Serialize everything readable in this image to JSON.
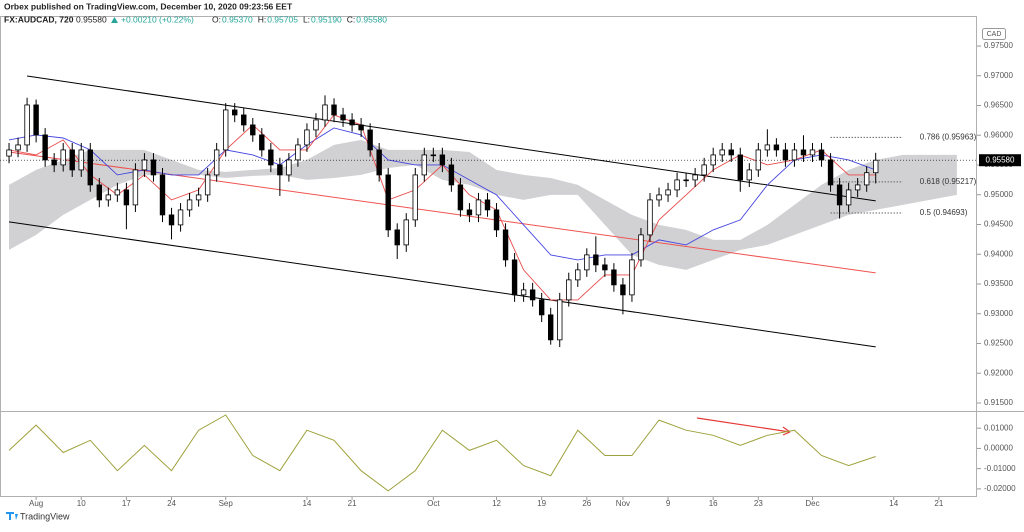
{
  "header": {
    "publisher": "Orbex published on TradingView.com, December 10, 2020 09:23:56 EET",
    "symbol": "FX:AUDCAD, 720",
    "last": "0.95580",
    "change": "+0.00210 (+0.22%)",
    "quote": [
      {
        "label": "O:",
        "value": "0.95370"
      },
      {
        "label": "H:",
        "value": "0.95705"
      },
      {
        "label": "L:",
        "value": "0.95190"
      },
      {
        "label": "C:",
        "value": "0.95580"
      }
    ],
    "currency": "CAD"
  },
  "footer": {
    "brand": "TradingView"
  },
  "chart_data": {
    "type": "candlestick",
    "xlim": [
      -4,
      104
    ],
    "ylim": [
      0.91382,
      0.98004
    ],
    "xticks": [
      {
        "value": 0,
        "label": "Aug"
      },
      {
        "value": 5,
        "label": "10"
      },
      {
        "value": 10,
        "label": "17"
      },
      {
        "value": 15,
        "label": "24"
      },
      {
        "value": 21,
        "label": "Sep"
      },
      {
        "value": 30,
        "label": "14"
      },
      {
        "value": 35,
        "label": "21"
      },
      {
        "value": 44,
        "label": "Oct"
      },
      {
        "value": 51,
        "label": "12"
      },
      {
        "value": 56,
        "label": "19"
      },
      {
        "value": 61,
        "label": "26"
      },
      {
        "value": 65,
        "label": "Nov"
      },
      {
        "value": 70,
        "label": "9"
      },
      {
        "value": 75,
        "label": "16"
      },
      {
        "value": 80,
        "label": "23"
      },
      {
        "value": 86,
        "label": "Dec"
      },
      {
        "value": 95,
        "label": "14"
      },
      {
        "value": 100,
        "label": "21"
      }
    ],
    "yticks": [
      {
        "value": 0.975,
        "label": "0.97500"
      },
      {
        "value": 0.97,
        "label": "0.97000"
      },
      {
        "value": 0.965,
        "label": "0.96500"
      },
      {
        "value": 0.96,
        "label": "0.96000"
      },
      {
        "value": 0.955,
        "label": "0.95500"
      },
      {
        "value": 0.95,
        "label": "0.95000"
      },
      {
        "value": 0.945,
        "label": "0.94500"
      },
      {
        "value": 0.94,
        "label": "0.94000"
      },
      {
        "value": 0.935,
        "label": "0.93500"
      },
      {
        "value": 0.93,
        "label": "0.93000"
      },
      {
        "value": 0.925,
        "label": "0.92500"
      },
      {
        "value": 0.92,
        "label": "0.92000"
      },
      {
        "value": 0.915,
        "label": "0.91500"
      }
    ],
    "last_value": 0.9558,
    "up_color": "#ffffff",
    "down_color": "#000000",
    "x": [
      -3,
      -2,
      -1,
      0,
      1,
      2,
      3,
      4,
      5,
      6,
      7,
      8,
      9,
      10,
      11,
      12,
      13,
      14,
      15,
      16,
      17,
      18,
      19,
      20,
      21,
      22,
      23,
      24,
      25,
      26,
      27,
      28,
      29,
      30,
      31,
      32,
      33,
      34,
      35,
      36,
      37,
      38,
      39,
      40,
      41,
      42,
      43,
      44,
      45,
      46,
      47,
      48,
      49,
      50,
      51,
      52,
      53,
      54,
      55,
      56,
      57,
      58,
      59,
      60,
      61,
      62,
      63,
      64,
      65,
      66,
      67,
      68,
      69,
      70,
      71,
      72,
      73,
      74,
      75,
      76,
      77,
      78,
      79,
      80,
      81,
      82,
      83,
      84,
      85,
      86,
      87,
      88,
      89,
      90,
      91,
      92,
      93
    ],
    "open": [
      0.9565,
      0.95753,
      0.95837,
      0.96509,
      0.96005,
      0.95585,
      0.95501,
      0.95753,
      0.95417,
      0.95753,
      0.95165,
      0.94913,
      0.94997,
      0.95081,
      0.94829,
      0.95417,
      0.95585,
      0.95333,
      0.94661,
      0.94493,
      0.94745,
      0.94913,
      0.94997,
      0.95333,
      0.95753,
      0.96425,
      0.96341,
      0.96173,
      0.96005,
      0.95753,
      0.95501,
      0.95333,
      0.95585,
      0.95837,
      0.96089,
      0.96257,
      0.96509,
      0.96341,
      0.96257,
      0.96173,
      0.96089,
      0.95753,
      0.95333,
      0.94409,
      0.94157,
      0.94577,
      0.95333,
      0.95669,
      0.95669,
      0.95501,
      0.95165,
      0.94745,
      0.94661,
      0.94913,
      0.94745,
      0.94409,
      0.93905,
      0.93317,
      0.93401,
      0.93233,
      0.92981,
      0.92561,
      0.93233,
      0.93569,
      0.93737,
      0.93989,
      0.93821,
      0.93737,
      0.93485,
      0.93317,
      0.93905,
      0.94325,
      0.94913,
      0.94997,
      0.95081,
      0.95249,
      0.95249,
      0.95333,
      0.95501,
      0.95669,
      0.95753,
      0.95669,
      0.95249,
      0.95417,
      0.95753,
      0.95837,
      0.95753,
      0.95585,
      0.95753,
      0.95669,
      0.95753,
      0.95585,
      0.95165,
      0.94829,
      0.95081,
      0.95165,
      0.9537
    ],
    "high": [
      0.9587,
      0.9596,
      0.9663,
      0.966,
      0.9612,
      0.957,
      0.9587,
      0.9587,
      0.9587,
      0.9587,
      0.9528,
      0.9512,
      0.952,
      0.952,
      0.9553,
      0.957,
      0.957,
      0.9545,
      0.9478,
      0.9486,
      0.9503,
      0.9512,
      0.9545,
      0.9587,
      0.9654,
      0.9654,
      0.9646,
      0.9629,
      0.9612,
      0.9587,
      0.9562,
      0.957,
      0.9595,
      0.962,
      0.9637,
      0.9667,
      0.9662,
      0.9646,
      0.9637,
      0.9629,
      0.962,
      0.9587,
      0.9545,
      0.9452,
      0.9469,
      0.9545,
      0.9579,
      0.9579,
      0.9579,
      0.9562,
      0.9528,
      0.9486,
      0.9503,
      0.9503,
      0.9486,
      0.9452,
      0.9402,
      0.9352,
      0.9352,
      0.9335,
      0.931,
      0.9335,
      0.9369,
      0.9385,
      0.941,
      0.943,
      0.9394,
      0.9385,
      0.936,
      0.9402,
      0.9444,
      0.9503,
      0.9512,
      0.952,
      0.9537,
      0.9537,
      0.9545,
      0.9562,
      0.9579,
      0.9587,
      0.9587,
      0.9579,
      0.9553,
      0.9587,
      0.961,
      0.9595,
      0.9587,
      0.9587,
      0.96,
      0.9587,
      0.9587,
      0.957,
      0.9528,
      0.952,
      0.9528,
      0.9548,
      0.95705
    ],
    "low": [
      0.9553,
      0.9563,
      0.9572,
      0.9588,
      0.9547,
      0.9538,
      0.9539,
      0.953,
      0.953,
      0.9505,
      0.9479,
      0.948,
      0.9488,
      0.9442,
      0.9471,
      0.953,
      0.9522,
      0.9454,
      0.9425,
      0.9438,
      0.9463,
      0.948,
      0.9488,
      0.9522,
      0.9564,
      0.9622,
      0.9606,
      0.9589,
      0.9564,
      0.9538,
      0.9498,
      0.9522,
      0.9547,
      0.9572,
      0.9597,
      0.9614,
      0.9622,
      0.9614,
      0.9606,
      0.9597,
      0.9564,
      0.9522,
      0.9429,
      0.9392,
      0.9404,
      0.9446,
      0.9522,
      0.9555,
      0.9538,
      0.9505,
      0.9463,
      0.9454,
      0.9454,
      0.9463,
      0.9429,
      0.9379,
      0.932,
      0.932,
      0.9312,
      0.9286,
      0.9248,
      0.9244,
      0.9312,
      0.9345,
      0.9362,
      0.937,
      0.9362,
      0.9337,
      0.9299,
      0.932,
      0.9379,
      0.9421,
      0.948,
      0.9488,
      0.9496,
      0.9513,
      0.9513,
      0.9522,
      0.9538,
      0.9555,
      0.9555,
      0.9505,
      0.9513,
      0.953,
      0.9564,
      0.9564,
      0.9547,
      0.9547,
      0.9555,
      0.9555,
      0.9547,
      0.9505,
      0.946,
      0.9471,
      0.9496,
      0.9505,
      0.9519
    ],
    "close": [
      0.95753,
      0.95837,
      0.96509,
      0.96005,
      0.95585,
      0.95501,
      0.95753,
      0.95417,
      0.95753,
      0.95165,
      0.94913,
      0.94997,
      0.95081,
      0.94829,
      0.95417,
      0.95585,
      0.95333,
      0.94661,
      0.94493,
      0.94745,
      0.94913,
      0.94997,
      0.95333,
      0.95753,
      0.96425,
      0.96341,
      0.96173,
      0.96005,
      0.95753,
      0.95501,
      0.95333,
      0.95585,
      0.95837,
      0.96089,
      0.96257,
      0.96509,
      0.96341,
      0.96257,
      0.96173,
      0.96089,
      0.95753,
      0.95333,
      0.94409,
      0.94157,
      0.94577,
      0.95333,
      0.95669,
      0.95669,
      0.95501,
      0.95165,
      0.94745,
      0.94661,
      0.94913,
      0.94745,
      0.94409,
      0.93905,
      0.93317,
      0.93401,
      0.93233,
      0.92981,
      0.92561,
      0.93233,
      0.93569,
      0.93737,
      0.93989,
      0.93821,
      0.93737,
      0.93485,
      0.93317,
      0.93905,
      0.94325,
      0.94913,
      0.94997,
      0.95081,
      0.95249,
      0.95249,
      0.95333,
      0.95501,
      0.95669,
      0.95753,
      0.95669,
      0.95249,
      0.95417,
      0.95753,
      0.95837,
      0.95753,
      0.95585,
      0.95753,
      0.95669,
      0.95753,
      0.95585,
      0.95165,
      0.94829,
      0.95081,
      0.95165,
      0.9537,
      0.9558
    ],
    "indicator_x": [
      -3,
      0,
      3,
      6,
      9,
      12,
      15,
      18,
      21,
      24,
      27,
      30,
      33,
      36,
      39,
      42,
      45,
      48,
      51,
      54,
      57,
      60,
      63,
      66,
      69,
      72,
      75,
      78,
      81,
      84,
      87,
      90,
      93,
      96,
      99,
      102
    ],
    "cloud_color": "#c9c9cd",
    "cloud_upper": [
      0.95165,
      0.95417,
      0.95585,
      0.95753,
      0.95753,
      0.95753,
      0.95585,
      0.95417,
      0.95383,
      0.95417,
      0.9545,
      0.95585,
      0.95837,
      0.95921,
      0.95753,
      0.95753,
      0.95753,
      0.95719,
      0.95417,
      0.95333,
      0.95282,
      0.95165,
      0.94913,
      0.94661,
      0.94493,
      0.94409,
      0.94241,
      0.94241,
      0.94493,
      0.94829,
      0.95165,
      0.95417,
      0.95585,
      0.95669,
      0.95669,
      0.95669
    ],
    "cloud_lower": [
      0.94073,
      0.94325,
      0.94661,
      0.94913,
      0.95165,
      0.95333,
      0.95333,
      0.95333,
      0.95282,
      0.95316,
      0.95333,
      0.95249,
      0.95282,
      0.95333,
      0.9545,
      0.95501,
      0.95249,
      0.95165,
      0.94997,
      0.94913,
      0.94997,
      0.94997,
      0.94493,
      0.93989,
      0.93821,
      0.93737,
      0.93905,
      0.94073,
      0.94157,
      0.94325,
      0.94493,
      0.94661,
      0.94745,
      0.94829,
      0.94913,
      0.94997
    ],
    "kijun_color": "#4545e0",
    "kijun": [
      0.95921,
      0.96005,
      0.95954,
      0.95753,
      0.95333,
      0.95417,
      0.95333,
      0.95333,
      0.95753,
      0.95669,
      0.95501,
      0.95837,
      0.96122,
      0.96005,
      0.95585,
      0.95501,
      0.95501,
      0.95249,
      0.94997,
      0.94493,
      0.93989,
      0.93905,
      0.93989,
      0.93989,
      0.94241,
      0.94157,
      0.94409,
      0.94577,
      0.95165,
      0.95585,
      0.95669,
      0.95585,
      0.95417,
      null,
      null,
      null
    ],
    "tenkan_color": "#e84a4a",
    "tenkan": [
      0.95753,
      0.95669,
      0.95921,
      0.95333,
      0.94997,
      0.95333,
      0.94913,
      0.95081,
      0.95753,
      0.96173,
      0.95753,
      0.95753,
      0.96341,
      0.96173,
      0.94913,
      0.95081,
      0.95501,
      0.94997,
      0.94745,
      0.93737,
      0.93233,
      0.93233,
      0.93653,
      0.93653,
      0.94577,
      0.94997,
      0.95417,
      0.95669,
      0.95501,
      0.95585,
      0.95753,
      0.95333,
      0.95333,
      null,
      null,
      null
    ],
    "trendlines": [
      {
        "color": "#000000",
        "x": [
          -1,
          93
        ],
        "y": [
          0.96996,
          0.94896
        ]
      },
      {
        "color": "#000000",
        "x": [
          -3,
          93
        ],
        "y": [
          0.94543,
          0.92443
        ]
      },
      {
        "color": "#ef5350",
        "x": [
          -3,
          93
        ],
        "y": [
          0.95719,
          0.93686
        ]
      }
    ],
    "fib_x": [
      88,
      96
    ],
    "fib": [
      {
        "value": 0.95963,
        "label": "0.786 (0.95963)"
      },
      {
        "value": 0.95217,
        "label": "0.618 (0.95217)"
      },
      {
        "value": 0.94693,
        "label": "0.5 (0.94693)"
      }
    ],
    "oscillator": {
      "color": "#9ea23c",
      "ylim": [
        -0.024,
        0.0175
      ],
      "yticks": [
        {
          "value": 0.01,
          "label": "0.01000"
        },
        {
          "value": 0,
          "label": "0.00000"
        },
        {
          "value": -0.01,
          "label": "-0.01000"
        },
        {
          "value": -0.02,
          "label": "-0.02000"
        }
      ],
      "values": [
        -0.001,
        0.0115,
        -0.002,
        0.004,
        -0.011,
        0.0015,
        -0.011,
        0.009,
        0.0165,
        -0.0035,
        -0.011,
        0.009,
        0.004,
        -0.011,
        -0.021,
        -0.011,
        0.009,
        -0.001,
        0.004,
        -0.0085,
        -0.0135,
        0.009,
        -0.0035,
        -0.0035,
        0.014,
        0.009,
        0.0065,
        0.0015,
        0.0065,
        0.009,
        -0.0035,
        -0.0085,
        -0.004,
        null,
        null,
        null
      ]
    }
  }
}
